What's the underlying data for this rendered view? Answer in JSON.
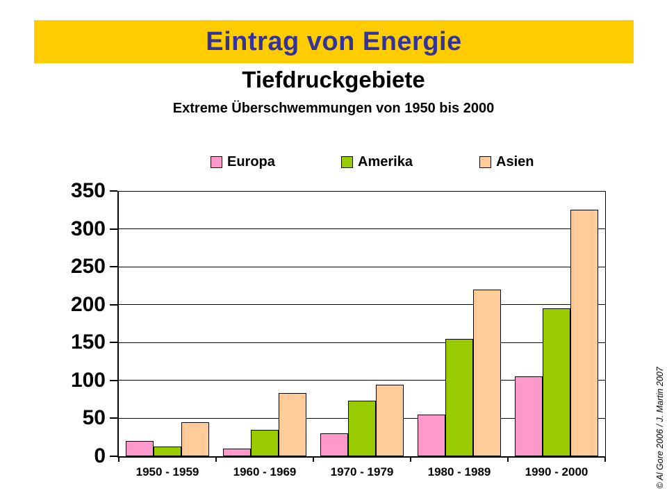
{
  "slide": {
    "banner_title": "Eintrag von Energie",
    "title": "Tiefdruckgebiete",
    "subtitle": "Extreme Überschwemmungen von 1950 bis 2000",
    "credit": "© Al Gore 2006 /  J. Martin 2007"
  },
  "colors": {
    "banner_bg": "#FFCC00",
    "banner_text": "#333399",
    "europa": "#FF99CC",
    "amerika": "#99CC00",
    "asien": "#FFCC99",
    "axis": "#000000"
  },
  "chart_data": {
    "type": "bar",
    "title": "Extreme Überschwemmungen von 1950 bis 2000",
    "categories": [
      "1950 - 1959",
      "1960 - 1969",
      "1970 - 1979",
      "1980 - 1989",
      "1990 - 2000"
    ],
    "series": [
      {
        "name": "Europa",
        "color": "#FF99CC",
        "values": [
          20,
          10,
          30,
          55,
          105
        ]
      },
      {
        "name": "Amerika",
        "color": "#99CC00",
        "values": [
          13,
          35,
          73,
          155,
          195
        ]
      },
      {
        "name": "Asien",
        "color": "#FFCC99",
        "values": [
          45,
          83,
          94,
          220,
          325
        ]
      }
    ],
    "xlabel": "",
    "ylabel": "",
    "ylim": [
      0,
      350
    ],
    "ytick_step": 50,
    "grid": true,
    "legend_position": "top"
  }
}
